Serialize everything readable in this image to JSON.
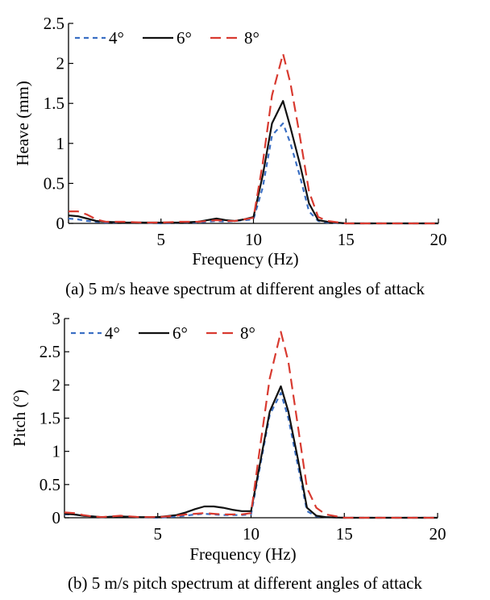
{
  "chart_data": [
    {
      "type": "line",
      "title": "",
      "caption": "(a) 5 m/s heave spectrum at different angles of attack",
      "xlabel": "Frequency (Hz)",
      "ylabel": "Heave (mm)",
      "xlim": [
        0,
        20
      ],
      "ylim": [
        0,
        2.5
      ],
      "xticks": [
        5,
        10,
        15,
        20
      ],
      "xtick_labels": [
        "5",
        "10",
        "15",
        "20"
      ],
      "yticks": [
        0,
        0.5,
        1,
        1.5,
        2,
        2.5
      ],
      "ytick_labels": [
        "0",
        "0.5",
        "1",
        "1.5",
        "2",
        "2.5"
      ],
      "grid": false,
      "legend_position": "top-left",
      "series": [
        {
          "name": "4°",
          "color": "#3a6fc4",
          "dash": "dash",
          "x": [
            0,
            0.5,
            1,
            1.5,
            2,
            3,
            4,
            5,
            6,
            7,
            7.5,
            8,
            8.5,
            9,
            9.5,
            10,
            10.5,
            11,
            11.6,
            12,
            12.5,
            13,
            13.5,
            14,
            15,
            16,
            17,
            18,
            19,
            20
          ],
          "y": [
            0.06,
            0.05,
            0.03,
            0.02,
            0.01,
            0.01,
            0.01,
            0.0,
            0.01,
            0.01,
            0.02,
            0.03,
            0.02,
            0.03,
            0.04,
            0.05,
            0.45,
            1.1,
            1.25,
            1.0,
            0.6,
            0.15,
            0.03,
            0.01,
            0.0,
            0.0,
            0.0,
            0.0,
            0.0,
            0.0
          ]
        },
        {
          "name": "6°",
          "color": "#111111",
          "dash": "solid",
          "x": [
            0,
            0.5,
            1,
            1.5,
            2,
            3,
            4,
            5,
            6,
            7,
            7.5,
            8,
            8.5,
            9,
            9.5,
            10,
            10.5,
            11,
            11.6,
            12,
            12.5,
            13,
            13.5,
            14,
            15,
            16,
            17,
            18,
            19,
            20
          ],
          "y": [
            0.1,
            0.09,
            0.06,
            0.03,
            0.02,
            0.01,
            0.01,
            0.01,
            0.01,
            0.02,
            0.04,
            0.06,
            0.04,
            0.03,
            0.05,
            0.08,
            0.6,
            1.25,
            1.53,
            1.2,
            0.75,
            0.25,
            0.04,
            0.02,
            0.0,
            0.0,
            0.0,
            0.0,
            0.0,
            0.0
          ]
        },
        {
          "name": "8°",
          "color": "#d83a30",
          "dash": "longdash",
          "x": [
            0,
            0.5,
            1,
            1.5,
            2,
            3,
            4,
            5,
            6,
            7,
            7.5,
            8,
            8.5,
            9,
            9.5,
            10,
            10.5,
            11,
            11.6,
            12,
            12.5,
            13,
            13.5,
            14,
            15,
            16,
            17,
            18,
            19,
            20
          ],
          "y": [
            0.15,
            0.15,
            0.11,
            0.05,
            0.02,
            0.02,
            0.01,
            0.01,
            0.02,
            0.02,
            0.03,
            0.04,
            0.03,
            0.03,
            0.05,
            0.07,
            0.75,
            1.6,
            2.12,
            1.75,
            1.1,
            0.4,
            0.08,
            0.03,
            0.0,
            0.0,
            0.0,
            0.0,
            0.0,
            0.0
          ]
        }
      ]
    },
    {
      "type": "line",
      "title": "",
      "caption": "(b) 5 m/s pitch spectrum at different angles of attack",
      "xlabel": "Frequency (Hz)",
      "ylabel": "Pitch (°)",
      "xlim": [
        0,
        20
      ],
      "ylim": [
        0,
        3
      ],
      "xticks": [
        5,
        10,
        15,
        20
      ],
      "xtick_labels": [
        "5",
        "10",
        "15",
        "20"
      ],
      "yticks": [
        0,
        0.5,
        1,
        1.5,
        2,
        2.5,
        3
      ],
      "ytick_labels": [
        "0",
        "0.5",
        "1",
        "1.5",
        "2",
        "2.5",
        "3"
      ],
      "grid": false,
      "legend_position": "top-left",
      "series": [
        {
          "name": "4°",
          "color": "#3a6fc4",
          "dash": "dash",
          "x": [
            0,
            0.5,
            1,
            1.5,
            2,
            3,
            4,
            5,
            6,
            6.5,
            7,
            7.5,
            8,
            8.5,
            9,
            9.5,
            10,
            10.5,
            11,
            11.6,
            12,
            12.5,
            13,
            13.5,
            14,
            15,
            16,
            17,
            18,
            19,
            20
          ],
          "y": [
            0.05,
            0.05,
            0.03,
            0.02,
            0.01,
            0.02,
            0.01,
            0.0,
            0.02,
            0.03,
            0.05,
            0.06,
            0.05,
            0.04,
            0.04,
            0.04,
            0.05,
            0.8,
            1.55,
            1.88,
            1.5,
            0.8,
            0.1,
            0.02,
            0.01,
            0.0,
            0.0,
            0.0,
            0.0,
            0.0,
            0.0
          ]
        },
        {
          "name": "6°",
          "color": "#111111",
          "dash": "solid",
          "x": [
            0,
            0.5,
            1,
            1.5,
            2,
            3,
            4,
            5,
            6,
            6.5,
            7,
            7.5,
            8,
            8.5,
            9,
            9.5,
            10,
            10.5,
            11,
            11.6,
            12,
            12.5,
            13,
            13.5,
            14,
            15,
            16,
            17,
            18,
            19,
            20
          ],
          "y": [
            0.06,
            0.05,
            0.03,
            0.02,
            0.01,
            0.02,
            0.01,
            0.01,
            0.04,
            0.08,
            0.13,
            0.17,
            0.17,
            0.15,
            0.12,
            0.1,
            0.1,
            0.85,
            1.6,
            1.98,
            1.6,
            0.9,
            0.15,
            0.03,
            0.01,
            0.0,
            0.0,
            0.0,
            0.0,
            0.0,
            0.0
          ]
        },
        {
          "name": "8°",
          "color": "#d83a30",
          "dash": "longdash",
          "x": [
            0,
            0.5,
            1,
            1.5,
            2,
            3,
            4,
            5,
            6,
            6.5,
            7,
            7.5,
            8,
            8.5,
            9,
            9.5,
            10,
            10.5,
            11,
            11.6,
            12,
            12.5,
            13,
            13.5,
            14,
            15,
            16,
            17,
            18,
            19,
            20
          ],
          "y": [
            0.08,
            0.07,
            0.04,
            0.02,
            0.01,
            0.03,
            0.01,
            0.01,
            0.03,
            0.05,
            0.06,
            0.07,
            0.06,
            0.05,
            0.05,
            0.05,
            0.07,
            1.1,
            2.1,
            2.8,
            2.35,
            1.4,
            0.45,
            0.15,
            0.05,
            0.0,
            0.0,
            0.0,
            0.0,
            0.0,
            0.0
          ]
        }
      ]
    }
  ]
}
